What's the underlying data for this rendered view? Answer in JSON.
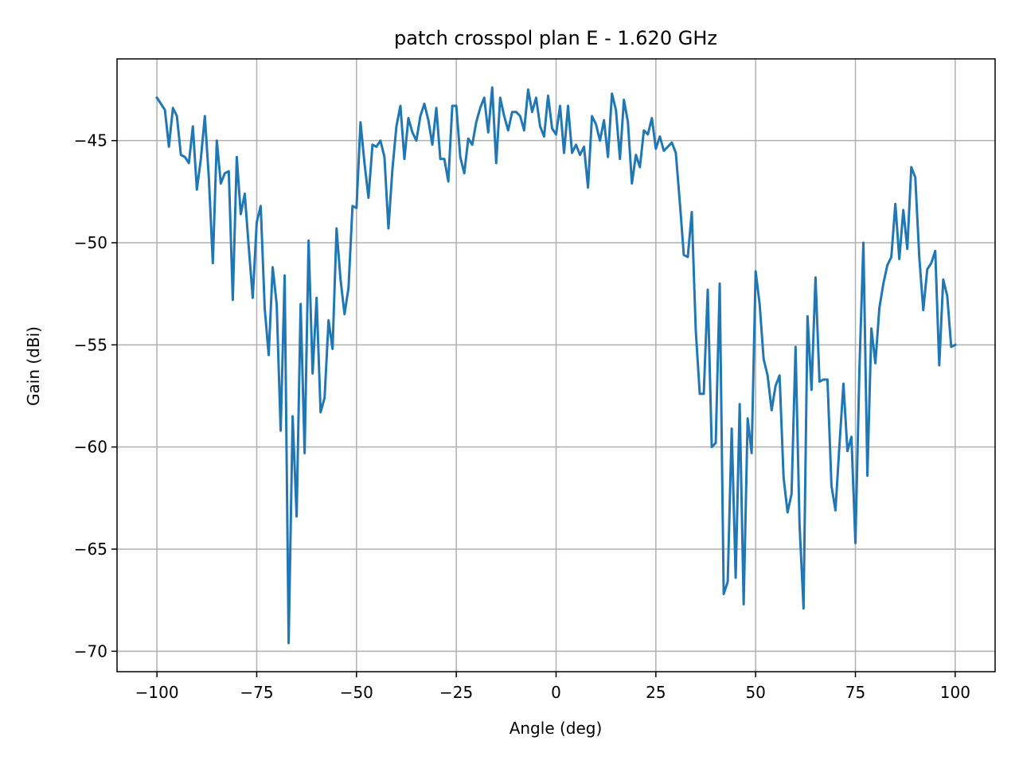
{
  "chart_data": {
    "type": "line",
    "title": "patch crosspol plan E - 1.620 GHz",
    "xlabel": "Angle (deg)",
    "ylabel": "Gain (dBi)",
    "xlim": [
      -110,
      110
    ],
    "ylim": [
      -71,
      -41
    ],
    "xticks": [
      -100,
      -75,
      -50,
      -25,
      0,
      25,
      50,
      75,
      100
    ],
    "yticks": [
      -45,
      -50,
      -55,
      -60,
      -65,
      -70
    ],
    "grid": true,
    "line_color": "#1f77b4",
    "series": [
      {
        "x": [
          -100,
          -99,
          -98,
          -97,
          -96,
          -95,
          -94,
          -93,
          -92,
          -91,
          -90,
          -89,
          -88,
          -87,
          -86,
          -85,
          -84,
          -83,
          -82,
          -81,
          -80,
          -79,
          -78,
          -77,
          -76,
          -75,
          -74,
          -73,
          -72,
          -71,
          -70,
          -69,
          -68,
          -67,
          -66,
          -65,
          -64,
          -63,
          -62,
          -61,
          -60,
          -59,
          -58,
          -57,
          -56,
          -55,
          -54,
          -53,
          -52,
          -51,
          -50,
          -49,
          -48,
          -47,
          -46,
          -45,
          -44,
          -43,
          -42,
          -41,
          -40,
          -39,
          -38,
          -37,
          -36,
          -35,
          -34,
          -33,
          -32,
          -31,
          -30,
          -29,
          -28,
          -27,
          -26,
          -25,
          -24,
          -23,
          -22,
          -21,
          -20,
          -19,
          -18,
          -17,
          -16,
          -15,
          -14,
          -13,
          -12,
          -11,
          -10,
          -9,
          -8,
          -7,
          -6,
          -5,
          -4,
          -3,
          -2,
          -1,
          0,
          1,
          2,
          3,
          4,
          5,
          6,
          7,
          8,
          9,
          10,
          11,
          12,
          13,
          14,
          15,
          16,
          17,
          18,
          19,
          20,
          21,
          22,
          23,
          24,
          25,
          26,
          27,
          28,
          29,
          30,
          31,
          32,
          33,
          34,
          35,
          36,
          37,
          38,
          39,
          40,
          41,
          42,
          43,
          44,
          45,
          46,
          47,
          48,
          49,
          50,
          51,
          52,
          53,
          54,
          55,
          56,
          57,
          58,
          59,
          60,
          61,
          62,
          63,
          64,
          65,
          66,
          67,
          68,
          69,
          70,
          71,
          72,
          73,
          74,
          75,
          76,
          77,
          78,
          79,
          80,
          81,
          82,
          83,
          84,
          85,
          86,
          87,
          88,
          89,
          90,
          91,
          92,
          93,
          94,
          95,
          96,
          97,
          98,
          99,
          100
        ],
        "y": [
          -42.9,
          -43.2,
          -43.5,
          -45.3,
          -43.4,
          -43.8,
          -45.7,
          -45.8,
          -46.1,
          -44.3,
          -47.4,
          -45.9,
          -43.8,
          -46.8,
          -51.0,
          -45.0,
          -47.1,
          -46.6,
          -46.5,
          -52.8,
          -45.8,
          -48.6,
          -47.6,
          -50.2,
          -52.7,
          -49.0,
          -48.2,
          -53.2,
          -55.5,
          -51.2,
          -53.0,
          -59.2,
          -51.6,
          -69.6,
          -58.5,
          -63.4,
          -53.0,
          -60.3,
          -49.9,
          -56.4,
          -52.7,
          -58.3,
          -57.6,
          -53.8,
          -55.2,
          -49.3,
          -51.8,
          -53.5,
          -52.2,
          -48.2,
          -48.3,
          -44.1,
          -46.1,
          -47.8,
          -45.2,
          -45.3,
          -45.0,
          -45.8,
          -49.3,
          -46.4,
          -44.3,
          -43.3,
          -45.9,
          -43.9,
          -44.6,
          -45.0,
          -43.8,
          -43.2,
          -44.0,
          -45.2,
          -43.4,
          -45.9,
          -45.9,
          -47.0,
          -43.3,
          -43.3,
          -45.8,
          -46.6,
          -44.9,
          -45.2,
          -44.1,
          -43.4,
          -42.9,
          -44.6,
          -42.4,
          -46.1,
          -42.9,
          -43.8,
          -44.5,
          -43.6,
          -43.6,
          -43.8,
          -44.5,
          -42.5,
          -43.6,
          -42.9,
          -44.3,
          -44.8,
          -42.8,
          -44.4,
          -44.7,
          -43.3,
          -45.6,
          -43.3,
          -45.6,
          -45.2,
          -45.7,
          -45.3,
          -47.3,
          -43.8,
          -44.2,
          -45.0,
          -44.0,
          -45.8,
          -42.7,
          -43.5,
          -45.9,
          -43.0,
          -44.1,
          -47.1,
          -45.7,
          -46.3,
          -44.5,
          -44.7,
          -43.9,
          -45.4,
          -44.8,
          -45.5,
          -45.3,
          -45.1,
          -45.6,
          -48.0,
          -50.6,
          -50.7,
          -48.5,
          -54.3,
          -57.4,
          -57.4,
          -52.3,
          -60.0,
          -59.8,
          -52.0,
          -67.2,
          -66.6,
          -59.1,
          -66.4,
          -57.9,
          -67.7,
          -58.6,
          -60.3,
          -51.4,
          -53.0,
          -55.7,
          -56.5,
          -58.2,
          -57.0,
          -56.5,
          -61.5,
          -63.2,
          -62.3,
          -55.1,
          -63.8,
          -67.9,
          -53.6,
          -57.2,
          -51.7,
          -56.8,
          -56.7,
          -56.7,
          -61.9,
          -63.1,
          -59.9,
          -56.9,
          -60.2,
          -59.5,
          -64.7,
          -56.2,
          -50.0,
          -61.4,
          -54.2,
          -55.9,
          -53.2,
          -52.0,
          -51.1,
          -50.7,
          -48.1,
          -50.8,
          -48.4,
          -50.3,
          -46.3,
          -46.8,
          -50.7,
          -53.3,
          -51.3,
          -51.0,
          -50.4,
          -56.0,
          -51.8,
          -52.6,
          -55.1,
          -55.0
        ]
      }
    ]
  }
}
